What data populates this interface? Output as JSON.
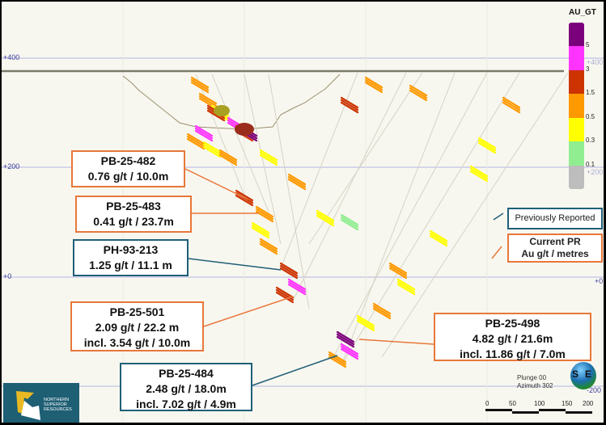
{
  "elevations": {
    "p400": "+400",
    "p200": "+200",
    "zero": "+0",
    "m200": "-200"
  },
  "legend": {
    "title": "AU_GT",
    "colors": [
      "#7b007b",
      "#ff33ff",
      "#cc3300",
      "#ff9900",
      "#ffff00",
      "#90ee90",
      "#bdbdbd"
    ],
    "breaks": [
      "5",
      "3",
      "1.5",
      "0.5",
      "0.3",
      "0.1"
    ]
  },
  "callouts": [
    {
      "hole": "PB-25-482",
      "lines": [
        "0.76 g/t / 10.0m"
      ],
      "type": "current"
    },
    {
      "hole": "PB-25-483",
      "lines": [
        "0.41 g/t / 23.7m"
      ],
      "type": "current"
    },
    {
      "hole": "PH-93-213",
      "lines": [
        "1.25 g/t / 11.1 m"
      ],
      "type": "previous"
    },
    {
      "hole": "PB-25-501",
      "lines": [
        "2.09 g/t / 22.2 m",
        "incl. 3.54 g/t / 10.0m"
      ],
      "type": "current"
    },
    {
      "hole": "PB-25-498",
      "lines": [
        "4.82 g/t / 21.6m",
        "incl. 11.86 g/t / 7.0m"
      ],
      "type": "current"
    },
    {
      "hole": "PB-25-484",
      "lines": [
        "2.48 g/t  / 18.0m",
        "incl. 7.02 g/t / 4.9m"
      ],
      "type": "previous"
    }
  ],
  "key": {
    "previous": "Previously Reported",
    "current_1": "Current PR",
    "current_2": "Au g/t / metres"
  },
  "colors": {
    "current": "#e8773a",
    "previous": "#1f5f78"
  },
  "logo": {
    "line1": "NORTHERN",
    "line2": "SUPERIOR",
    "line3": "RESOURCES"
  },
  "orientation": {
    "plunge": "Plunge 00",
    "azimuth": "Azimuth 302"
  },
  "globe": {
    "west": "S",
    "east": "E"
  },
  "scale": {
    "ticks": [
      "0",
      "50",
      "100",
      "150",
      "200"
    ]
  }
}
